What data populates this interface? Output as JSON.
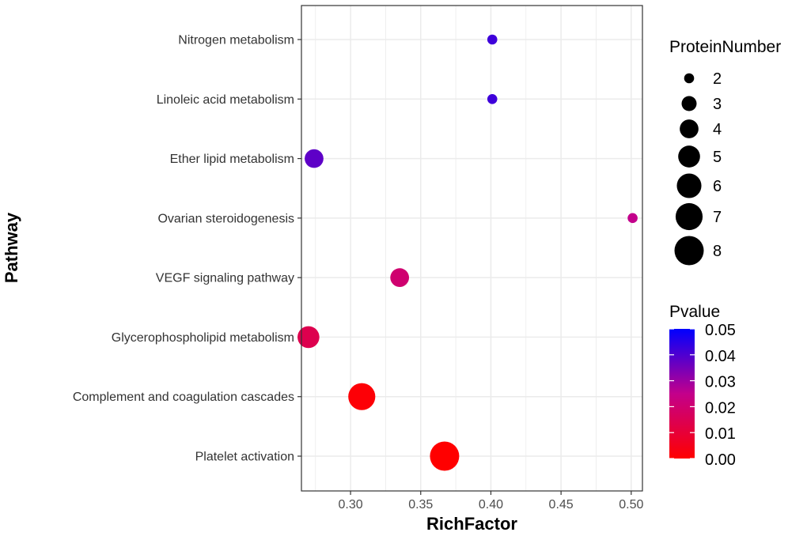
{
  "chart_data": {
    "type": "scatter",
    "xlabel": "RichFactor",
    "ylabel": "Pathway",
    "xlim": [
      0.265,
      0.508
    ],
    "xticks": [
      0.3,
      0.35,
      0.4,
      0.45,
      0.5
    ],
    "xtick_labels": [
      "0.30",
      "0.35",
      "0.40",
      "0.45",
      "0.50"
    ],
    "grid": true,
    "categories": [
      "Platelet activation",
      "Complement and coagulation cascades",
      "Glycerophospholipid metabolism",
      "VEGF signaling pathway",
      "Ovarian steroidogenesis",
      "Ether lipid metabolism",
      "Linoleic acid metabolism",
      "Nitrogen metabolism"
    ],
    "points": [
      {
        "pathway": "Platelet activation",
        "rich_factor": 0.367,
        "protein_number": 8,
        "pvalue": 0.0
      },
      {
        "pathway": "Complement and coagulation cascades",
        "rich_factor": 0.308,
        "protein_number": 7,
        "pvalue": 0.001
      },
      {
        "pathway": "Glycerophospholipid metabolism",
        "rich_factor": 0.27,
        "protein_number": 5,
        "pvalue": 0.014
      },
      {
        "pathway": "VEGF signaling pathway",
        "rich_factor": 0.335,
        "protein_number": 4,
        "pvalue": 0.02
      },
      {
        "pathway": "Ovarian steroidogenesis",
        "rich_factor": 0.501,
        "protein_number": 2,
        "pvalue": 0.025
      },
      {
        "pathway": "Ether lipid metabolism",
        "rich_factor": 0.274,
        "protein_number": 4,
        "pvalue": 0.038
      },
      {
        "pathway": "Linoleic acid metabolism",
        "rich_factor": 0.401,
        "protein_number": 2,
        "pvalue": 0.042
      },
      {
        "pathway": "Nitrogen metabolism",
        "rich_factor": 0.401,
        "protein_number": 2,
        "pvalue": 0.042
      }
    ],
    "size_legend": {
      "title": "ProteinNumber",
      "values": [
        2,
        3,
        4,
        5,
        6,
        7,
        8
      ],
      "labels": [
        "2",
        "3",
        "4",
        "5",
        "6",
        "7",
        "8"
      ]
    },
    "color_legend": {
      "title": "Pvalue",
      "range": [
        0.0,
        0.05
      ],
      "ticks": [
        0.05,
        0.04,
        0.03,
        0.02,
        0.01,
        0.0
      ],
      "tick_labels": [
        "0.05",
        "0.04",
        "0.03",
        "0.02",
        "0.01",
        "0.00"
      ],
      "low_color": "#ff0000",
      "high_color": "#0000ff"
    },
    "colors": {
      "grid": "#ebebeb",
      "panel_border": "#333333",
      "text": "#4d4d4d"
    }
  }
}
